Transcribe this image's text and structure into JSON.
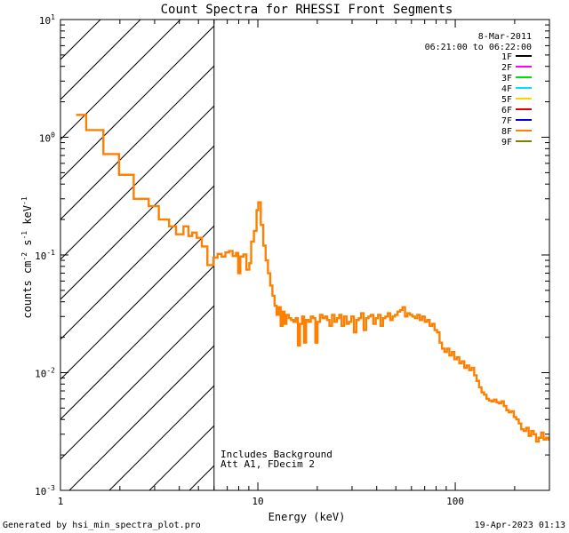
{
  "chart_data": {
    "type": "line",
    "title": "Count Spectra for RHESSI Front Segments",
    "xlabel": "Energy (keV)",
    "ylabel_parts": {
      "base": "counts cm",
      "exp1": "-2",
      "mid": " s",
      "exp2": "-1",
      "end": " keV",
      "exp3": "-1"
    },
    "xscale": "log",
    "yscale": "log",
    "xlim": [
      1,
      300
    ],
    "ylim": [
      0.001,
      10
    ],
    "x_ticks": [
      {
        "value": 1,
        "label": "1"
      },
      {
        "value": 10,
        "label": "10"
      },
      {
        "value": 100,
        "label": "100"
      }
    ],
    "y_ticks": [
      {
        "value": 0.001,
        "base": "10",
        "exp": "-3"
      },
      {
        "value": 0.01,
        "base": "10",
        "exp": "-2"
      },
      {
        "value": 0.1,
        "base": "10",
        "exp": "-1"
      },
      {
        "value": 1,
        "base": "10",
        "exp": "0"
      },
      {
        "value": 10,
        "base": "10",
        "exp": "1"
      }
    ],
    "hatch_region_xmax": 6.0,
    "date": "8-Mar-2011",
    "time_range": "06:21:00 to 06:22:00",
    "annotations": [
      "Includes Background",
      "Att A1, FDecim 2"
    ],
    "legend": [
      {
        "name": "1F",
        "color": "#000000"
      },
      {
        "name": "2F",
        "color": "#ff00ff"
      },
      {
        "name": "3F",
        "color": "#00e000"
      },
      {
        "name": "4F",
        "color": "#00e0ff"
      },
      {
        "name": "5F",
        "color": "#ffd200"
      },
      {
        "name": "6F",
        "color": "#e00000"
      },
      {
        "name": "7F",
        "color": "#0000dd"
      },
      {
        "name": "8F",
        "color": "#ff8000"
      },
      {
        "name": "9F",
        "color": "#808000"
      }
    ],
    "series": [
      {
        "name": "8F",
        "color": "#ff8000",
        "steps": [
          [
            1.2,
            1.55
          ],
          [
            1.35,
            1.15
          ],
          [
            1.65,
            0.72
          ],
          [
            1.98,
            0.48
          ],
          [
            2.35,
            0.3
          ],
          [
            2.8,
            0.26
          ],
          [
            3.15,
            0.2
          ],
          [
            3.55,
            0.175
          ],
          [
            3.85,
            0.15
          ],
          [
            4.2,
            0.175
          ],
          [
            4.45,
            0.145
          ],
          [
            4.65,
            0.155
          ],
          [
            4.9,
            0.14
          ],
          [
            5.2,
            0.118
          ],
          [
            5.55,
            0.082
          ],
          [
            5.95,
            0.095
          ],
          [
            6.25,
            0.102
          ],
          [
            6.55,
            0.097
          ],
          [
            6.85,
            0.105
          ],
          [
            7.15,
            0.108
          ],
          [
            7.45,
            0.098
          ],
          [
            7.75,
            0.104
          ],
          [
            7.95,
            0.07
          ],
          [
            8.15,
            0.097
          ],
          [
            8.45,
            0.101
          ],
          [
            8.75,
            0.075
          ],
          [
            9.05,
            0.085
          ],
          [
            9.25,
            0.13
          ],
          [
            9.55,
            0.16
          ],
          [
            9.85,
            0.24
          ],
          [
            10.05,
            0.28
          ],
          [
            10.35,
            0.18
          ],
          [
            10.65,
            0.12
          ],
          [
            10.95,
            0.09
          ],
          [
            11.25,
            0.07
          ],
          [
            11.55,
            0.055
          ],
          [
            11.85,
            0.045
          ],
          [
            12.15,
            0.037
          ],
          [
            12.45,
            0.031
          ],
          [
            12.75,
            0.036
          ],
          [
            13.05,
            0.025
          ],
          [
            13.35,
            0.033
          ],
          [
            13.65,
            0.026
          ],
          [
            13.95,
            0.031
          ],
          [
            14.35,
            0.029
          ],
          [
            14.75,
            0.028
          ],
          [
            15.15,
            0.027
          ],
          [
            15.55,
            0.029
          ],
          [
            15.95,
            0.017
          ],
          [
            16.35,
            0.026
          ],
          [
            16.75,
            0.03
          ],
          [
            17.15,
            0.018
          ],
          [
            17.55,
            0.028
          ],
          [
            18.05,
            0.027
          ],
          [
            18.55,
            0.03
          ],
          [
            19.05,
            0.029
          ],
          [
            19.55,
            0.018
          ],
          [
            20.05,
            0.027
          ],
          [
            20.65,
            0.031
          ],
          [
            21.25,
            0.029
          ],
          [
            21.85,
            0.03
          ],
          [
            22.45,
            0.028
          ],
          [
            23.05,
            0.025
          ],
          [
            23.75,
            0.031
          ],
          [
            24.45,
            0.027
          ],
          [
            25.15,
            0.029
          ],
          [
            25.85,
            0.031
          ],
          [
            26.55,
            0.025
          ],
          [
            27.35,
            0.03
          ],
          [
            28.15,
            0.026
          ],
          [
            28.95,
            0.027
          ],
          [
            29.75,
            0.03
          ],
          [
            30.65,
            0.022
          ],
          [
            31.55,
            0.028
          ],
          [
            32.45,
            0.029
          ],
          [
            33.35,
            0.032
          ],
          [
            34.35,
            0.023
          ],
          [
            35.35,
            0.029
          ],
          [
            36.35,
            0.03
          ],
          [
            37.35,
            0.031
          ],
          [
            38.45,
            0.026
          ],
          [
            39.55,
            0.029
          ],
          [
            40.65,
            0.031
          ],
          [
            41.85,
            0.025
          ],
          [
            43.05,
            0.029
          ],
          [
            44.25,
            0.03
          ],
          [
            45.55,
            0.032
          ],
          [
            46.85,
            0.028
          ],
          [
            48.15,
            0.03
          ],
          [
            49.55,
            0.031
          ],
          [
            51.05,
            0.033
          ],
          [
            52.55,
            0.034
          ],
          [
            54.05,
            0.036
          ],
          [
            55.65,
            0.03
          ],
          [
            57.25,
            0.032
          ],
          [
            58.95,
            0.031
          ],
          [
            60.65,
            0.03
          ],
          [
            62.45,
            0.029
          ],
          [
            64.25,
            0.031
          ],
          [
            66.15,
            0.028
          ],
          [
            68.05,
            0.03
          ],
          [
            70.05,
            0.027
          ],
          [
            72.05,
            0.028
          ],
          [
            74.15,
            0.025
          ],
          [
            76.35,
            0.026
          ],
          [
            78.55,
            0.023
          ],
          [
            80.85,
            0.022
          ],
          [
            83.25,
            0.018
          ],
          [
            85.65,
            0.016
          ],
          [
            88.15,
            0.015
          ],
          [
            90.75,
            0.016
          ],
          [
            93.35,
            0.014
          ],
          [
            96.15,
            0.015
          ],
          [
            98.95,
            0.013
          ],
          [
            101.85,
            0.0135
          ],
          [
            104.85,
            0.012
          ],
          [
            107.85,
            0.0125
          ],
          [
            111.05,
            0.011
          ],
          [
            114.25,
            0.0115
          ],
          [
            117.65,
            0.0105
          ],
          [
            121.05,
            0.011
          ],
          [
            124.65,
            0.0095
          ],
          [
            128.25,
            0.0085
          ],
          [
            132.05,
            0.0075
          ],
          [
            135.85,
            0.0068
          ],
          [
            139.85,
            0.0065
          ],
          [
            143.95,
            0.006
          ],
          [
            148.15,
            0.0058
          ],
          [
            152.55,
            0.0057
          ],
          [
            157.05,
            0.0059
          ],
          [
            161.65,
            0.0056
          ],
          [
            166.35,
            0.0055
          ],
          [
            171.25,
            0.0057
          ],
          [
            176.25,
            0.0052
          ],
          [
            181.45,
            0.0048
          ],
          [
            186.75,
            0.0046
          ],
          [
            192.25,
            0.0047
          ],
          [
            197.95,
            0.0042
          ],
          [
            203.75,
            0.004
          ],
          [
            209.75,
            0.0037
          ],
          [
            215.95,
            0.0033
          ],
          [
            222.25,
            0.0032
          ],
          [
            228.85,
            0.0034
          ],
          [
            235.55,
            0.0029
          ],
          [
            242.45,
            0.0032
          ],
          [
            249.55,
            0.003
          ],
          [
            256.95,
            0.0026
          ],
          [
            264.45,
            0.0028
          ],
          [
            272.25,
            0.0031
          ],
          [
            280.25,
            0.0027
          ],
          [
            288.45,
            0.0028
          ],
          [
            296.95,
            0.0027
          ]
        ]
      }
    ]
  },
  "footer": {
    "left": "Generated by hsi_min_spectra_plot.pro",
    "right": "19-Apr-2023 01:13"
  }
}
